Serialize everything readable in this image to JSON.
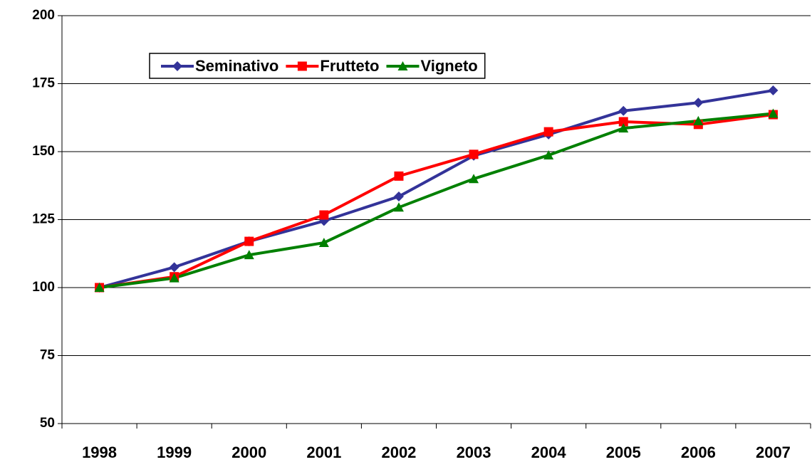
{
  "chart_data": {
    "type": "line",
    "categories": [
      "1998",
      "1999",
      "2000",
      "2001",
      "2002",
      "2003",
      "2004",
      "2005",
      "2006",
      "2007"
    ],
    "series": [
      {
        "name": "Seminativo",
        "color": "#333399",
        "marker": "diamond",
        "values": [
          100,
          107.5,
          117,
          124.5,
          133.5,
          148.5,
          156.3,
          165,
          168,
          172.5
        ]
      },
      {
        "name": "Frutteto",
        "color": "#ff0000",
        "marker": "square",
        "values": [
          100,
          104,
          117,
          126.7,
          141,
          149,
          157.3,
          161,
          160,
          163.6
        ]
      },
      {
        "name": "Vigneto",
        "color": "#008000",
        "marker": "triangle",
        "values": [
          100,
          103.5,
          112,
          116.5,
          129.5,
          140,
          148.7,
          158.6,
          161.3,
          164
        ]
      }
    ],
    "ylim": [
      50,
      200
    ],
    "yticks": [
      50,
      75,
      100,
      125,
      150,
      175,
      200
    ],
    "grid": true,
    "legend": "top-left"
  }
}
